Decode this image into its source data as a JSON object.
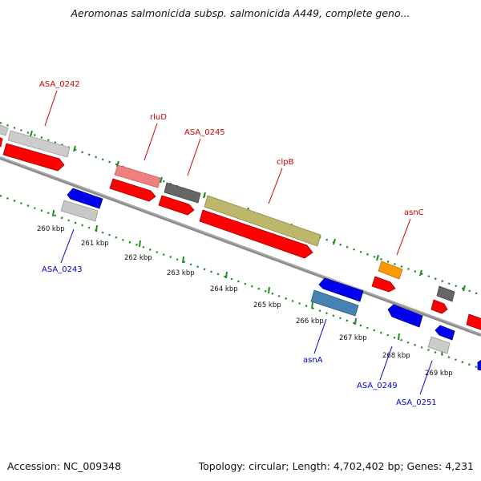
{
  "title": "Aeromonas salmonicida subsp. salmonicida A449, complete geno...",
  "footer": {
    "accession": "Accession: NC_009348",
    "summary": "Topology: circular; Length: 4,702,402 bp; Genes: 4,231"
  },
  "colors": {
    "backbone": "#8c8c8c",
    "tick_green": "#1f8a1f",
    "label_forward": "#cc0000",
    "label_reverse": "#0000cc",
    "cds": "#ff0000",
    "gray_gene": "#c8c8c8",
    "dark_gene": "#666666",
    "pink_gene": "#f08080",
    "olive_gene": "#bdb76b",
    "orange_gene": "#ff9900",
    "blue_gene": "#0000ee",
    "steel_gene": "#4682b4"
  },
  "position_ticks": [
    "260 kbp",
    "261 kbp",
    "262 kbp",
    "263 kbp",
    "264 kbp",
    "265 kbp",
    "266 kbp",
    "267 kbp",
    "268 kbp",
    "269 kbp"
  ],
  "gene_labels_forward": [
    "ASA_0242",
    "rluD",
    "ASA_0245",
    "clpB",
    "asnC"
  ],
  "gene_labels_reverse": [
    "ASA_0243",
    "asnA",
    "ASA_0249",
    "ASA_0251"
  ]
}
